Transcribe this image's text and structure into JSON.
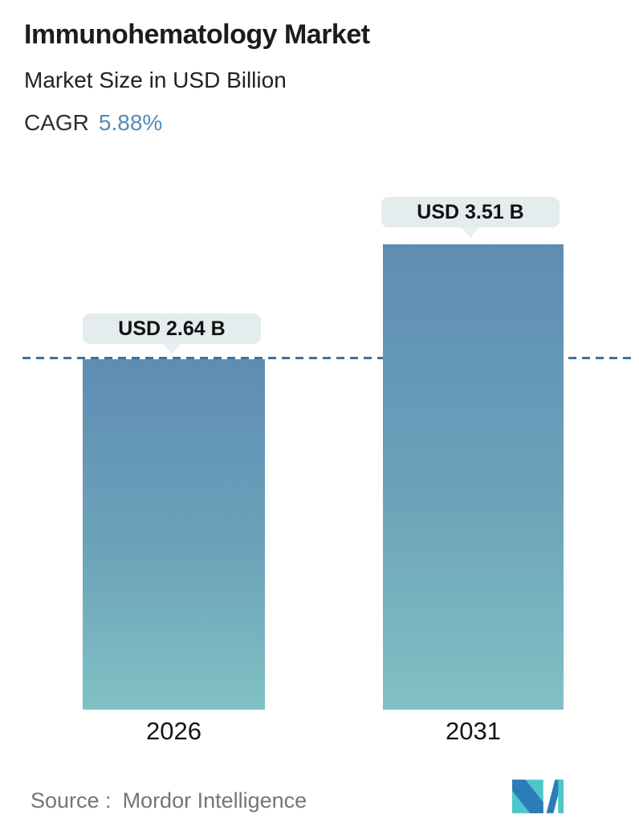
{
  "header": {
    "title": "Immunohematology Market",
    "subtitle": "Market Size in USD Billion",
    "cagr_label": "CAGR",
    "cagr_value": "5.88%"
  },
  "chart_data": {
    "type": "bar",
    "title": "Immunohematology Market",
    "ylabel": "Market Size in USD Billion",
    "cagr_percent": 5.88,
    "categories": [
      "2026",
      "2031"
    ],
    "values": [
      2.64,
      3.51
    ],
    "value_labels": [
      "USD 2.64 B",
      "USD 3.51 B"
    ],
    "unit": "USD Billion",
    "ylim": [
      0,
      3.6
    ],
    "grid": false,
    "legend": false,
    "reference_line": {
      "at_value": 2.64,
      "style": "dashed",
      "color": "#3f719f"
    },
    "bar_gradient": {
      "top": "#5e8db4",
      "bottom": "#80c1c5"
    }
  },
  "footer": {
    "source_label": "Source :",
    "source_value": "Mordor Intelligence",
    "logo": "mordor-intelligence-logo"
  },
  "colors": {
    "accent_blue": "#548bb8",
    "pill_background": "#e4ecee",
    "dash_line": "#3f719f",
    "text_dark": "#1c1c1c",
    "source_gray": "#757575",
    "logo_teal": "#4ec5c9",
    "logo_blue": "#2b7cb8"
  }
}
